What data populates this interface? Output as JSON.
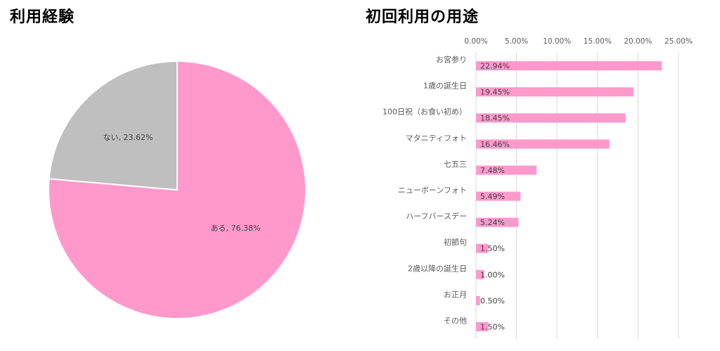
{
  "chart_data": [
    {
      "type": "pie",
      "title": "利用経験",
      "slices": [
        {
          "label": "ある",
          "value": 76.38,
          "color": "#FF99CC",
          "data_label": "ある, 76.38%"
        },
        {
          "label": "ない",
          "value": 23.62,
          "color": "#BFBFBF",
          "data_label": "ない, 23.62%"
        }
      ]
    },
    {
      "type": "bar",
      "orientation": "horizontal",
      "title": "初回利用の用途",
      "categories": [
        "お宮参り",
        "1歳の誕生日",
        "100日祝（お食い初め）",
        "マタニティフォト",
        "七五三",
        "ニューボーンフォト",
        "ハーフバースデー",
        "初節句",
        "2歳以降の誕生日",
        "お正月",
        "その他"
      ],
      "values": [
        22.94,
        19.45,
        18.45,
        16.46,
        7.48,
        5.49,
        5.24,
        1.5,
        1.0,
        0.5,
        1.5
      ],
      "data_labels": [
        "22.94%",
        "19.45%",
        "18.45%",
        "16.46%",
        "7.48%",
        "5.49%",
        "5.24%",
        "1.50%",
        "1.00%",
        "0.50%",
        "1.50%"
      ],
      "xlim": [
        0,
        25
      ],
      "xticks": [
        "0.00%",
        "5.00%",
        "10.00%",
        "15.00%",
        "20.00%",
        "25.00%"
      ],
      "grid": true,
      "bar_color": "#FF99CC"
    }
  ]
}
